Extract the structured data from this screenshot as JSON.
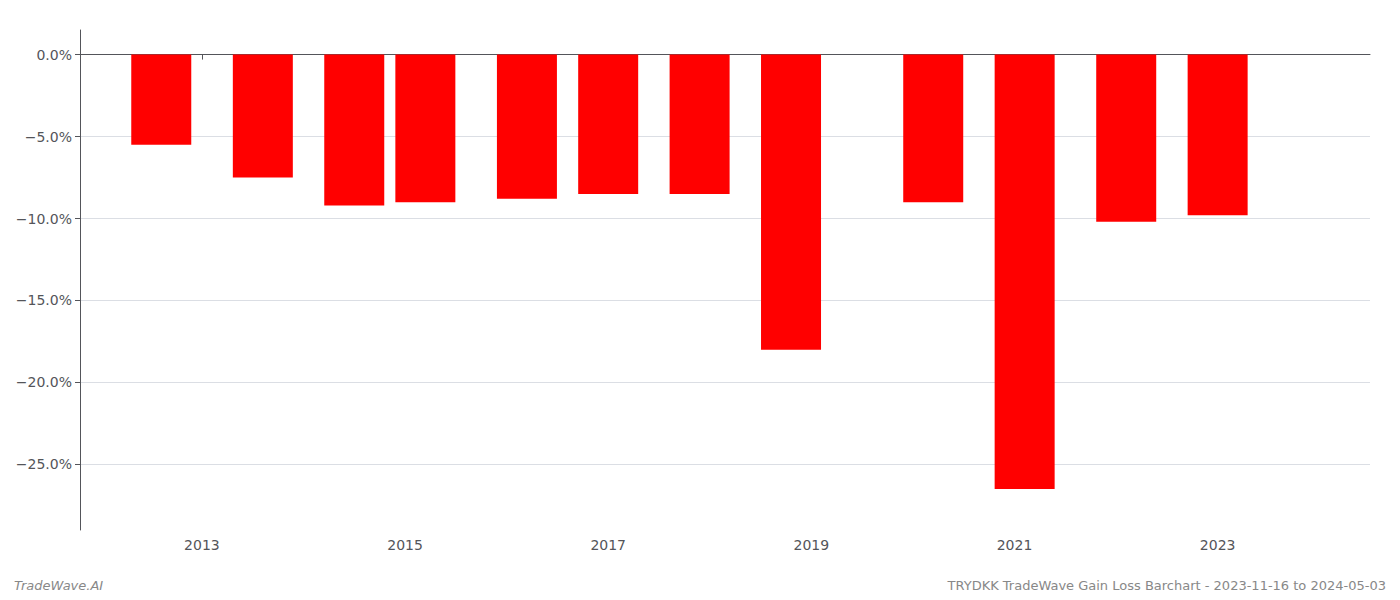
{
  "chart_data": {
    "type": "bar",
    "x": [
      2012.6,
      2013.6,
      2014.5,
      2015.2,
      2016.2,
      2017.0,
      2017.9,
      2018.8,
      2020.2,
      2021.1,
      2022.1,
      2023.0
    ],
    "values": [
      -5.5,
      -7.5,
      -9.2,
      -9.0,
      -8.8,
      -8.5,
      -8.5,
      -18.0,
      -9.0,
      -26.5,
      -10.2,
      -9.8
    ],
    "color": "#ff0000",
    "xlim": [
      2011.8,
      2024.5
    ],
    "xticks": [
      2013,
      2015,
      2017,
      2019,
      2021,
      2023
    ],
    "ylim": [
      -29,
      1.5
    ],
    "yticks": [
      {
        "value": 0.0,
        "label": "0.0%"
      },
      {
        "value": -5.0,
        "label": "−5.0%"
      },
      {
        "value": -10.0,
        "label": "−10.0%"
      },
      {
        "value": -15.0,
        "label": "−15.0%"
      },
      {
        "value": -20.0,
        "label": "−20.0%"
      },
      {
        "value": -25.0,
        "label": "−25.0%"
      }
    ],
    "grid": true,
    "annotations": [
      "TradeWave.AI",
      "TRYDKK TradeWave Gain Loss Barchart - 2023-11-16 to 2024-05-03"
    ]
  }
}
